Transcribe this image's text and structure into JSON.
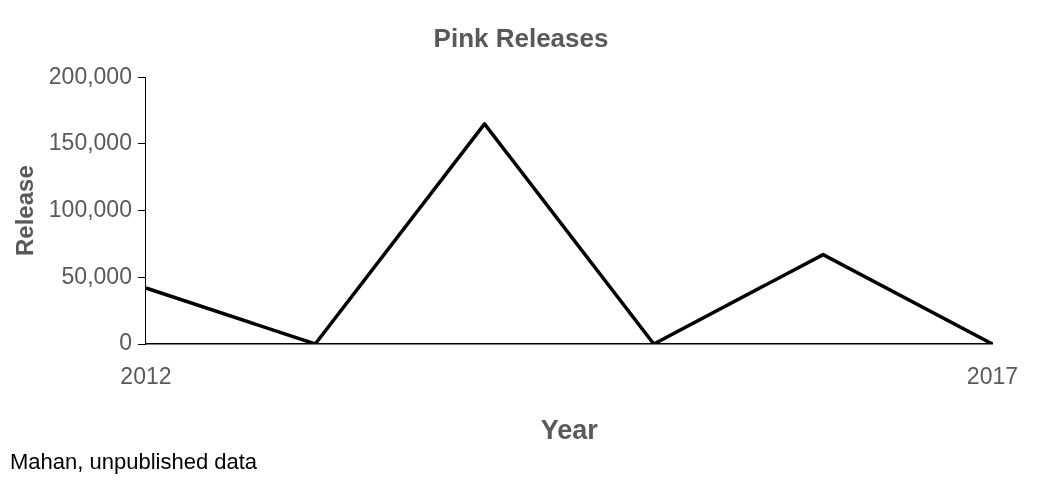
{
  "chart_data": {
    "type": "line",
    "title": "Pink Releases",
    "xlabel": "Year",
    "ylabel": "Release",
    "categories": [
      "2012",
      null,
      null,
      null,
      null,
      "2017"
    ],
    "series": [
      {
        "color": "#000000",
        "values": [
          42000,
          0,
          165000,
          0,
          67000,
          0
        ]
      }
    ],
    "ylim": [
      0,
      200000
    ],
    "yticks": [
      {
        "value": 0,
        "label": "0"
      },
      {
        "value": 50000,
        "label": "50,000"
      },
      {
        "value": 100000,
        "label": "100,000"
      },
      {
        "value": 150000,
        "label": "150,000"
      },
      {
        "value": 200000,
        "label": "200,000"
      }
    ],
    "grid": false,
    "legend": false,
    "marker": "none",
    "line_style": "solid",
    "annotations": [
      "Mahan, unpublished data"
    ]
  }
}
